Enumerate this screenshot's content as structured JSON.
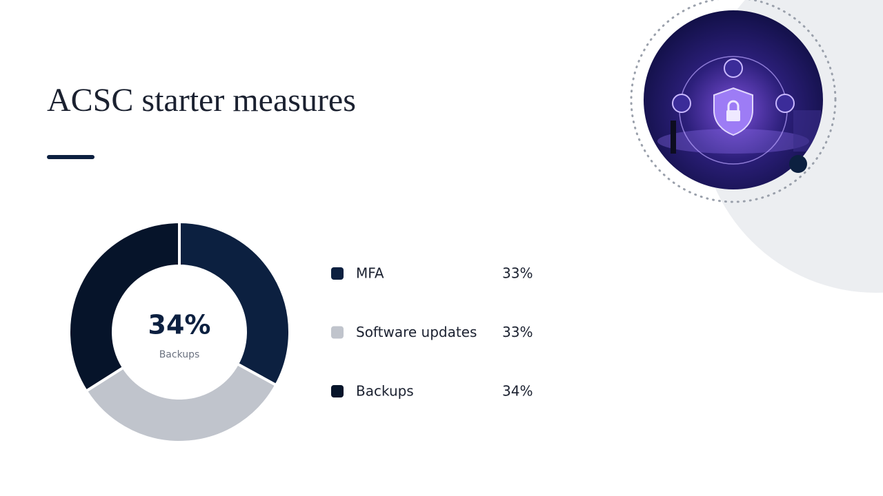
{
  "chart_data": {
    "type": "pie",
    "title": "ACSC starter measures",
    "categories": [
      "MFA",
      "Software updates",
      "Backups"
    ],
    "values": [
      33,
      33,
      34
    ],
    "value_labels": [
      "33%",
      "33%",
      "34%"
    ],
    "colors": [
      "#0c2040",
      "#c0c4cc",
      "#06142a"
    ],
    "donut": true,
    "highlight": 2
  }
}
